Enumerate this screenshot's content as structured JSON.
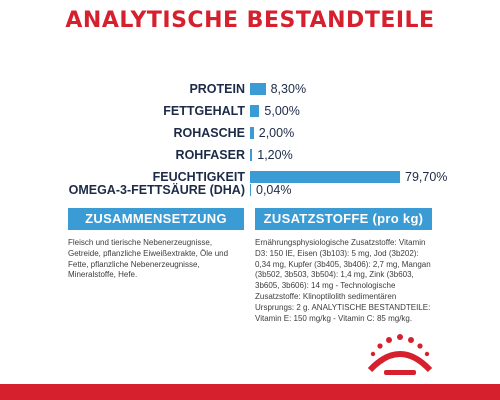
{
  "title": "ANALYTISCHE BESTANDTEILE",
  "nutrients": [
    {
      "label": "PROTEIN",
      "value_text": "8,30%",
      "value": 8.3
    },
    {
      "label": "FETTGEHALT",
      "value_text": "5,00%",
      "value": 5.0
    },
    {
      "label": "ROHASCHE",
      "value_text": "2,00%",
      "value": 2.0
    },
    {
      "label": "ROHFASER",
      "value_text": "1,20%",
      "value": 1.2
    },
    {
      "label": "FEUCHTIGKEIT",
      "value_text": "79,70%",
      "value": 79.7
    },
    {
      "label": "OMEGA-3-FETTSÄURE (DHA)",
      "value_text": "0,04%",
      "value": 0.04
    }
  ],
  "composition": {
    "heading": "ZUSAMMENSETZUNG",
    "text": "Fleisch und tierische Nebenerzeugnisse, Getreide, pflanzliche Eiweißextrakte, Öle und Fette, pflanzliche Nebenerzeugnisse, Mineralstoffe, Hefe."
  },
  "additives": {
    "heading": "ZUSATZSTOFFE (pro kg)",
    "text": "Ernährungsphysiologische Zusatzstoffe: Vitamin D3: 150 IE, Eisen (3b103): 5 mg, Jod (3b202): 0,34 mg, Kupfer (3b405, 3b406): 2,7 mg, Mangan (3b502, 3b503, 3b504): 1,4 mg, Zink (3b603, 3b605, 3b606): 14 mg - Technologische Zusatzstoffe: Klinoptilolith sedimentären Ursprungs: 2 g. ANALYTISCHE BESTANDTEILE: Vitamin E: 150 mg/kg - Vitamin C: 85 mg/kg."
  },
  "colors": {
    "accent_red": "#d7202e",
    "bar_blue": "#3a9bd5",
    "text_dark": "#1d2b46"
  },
  "logo_icon": "royal-canin-crown-logo"
}
